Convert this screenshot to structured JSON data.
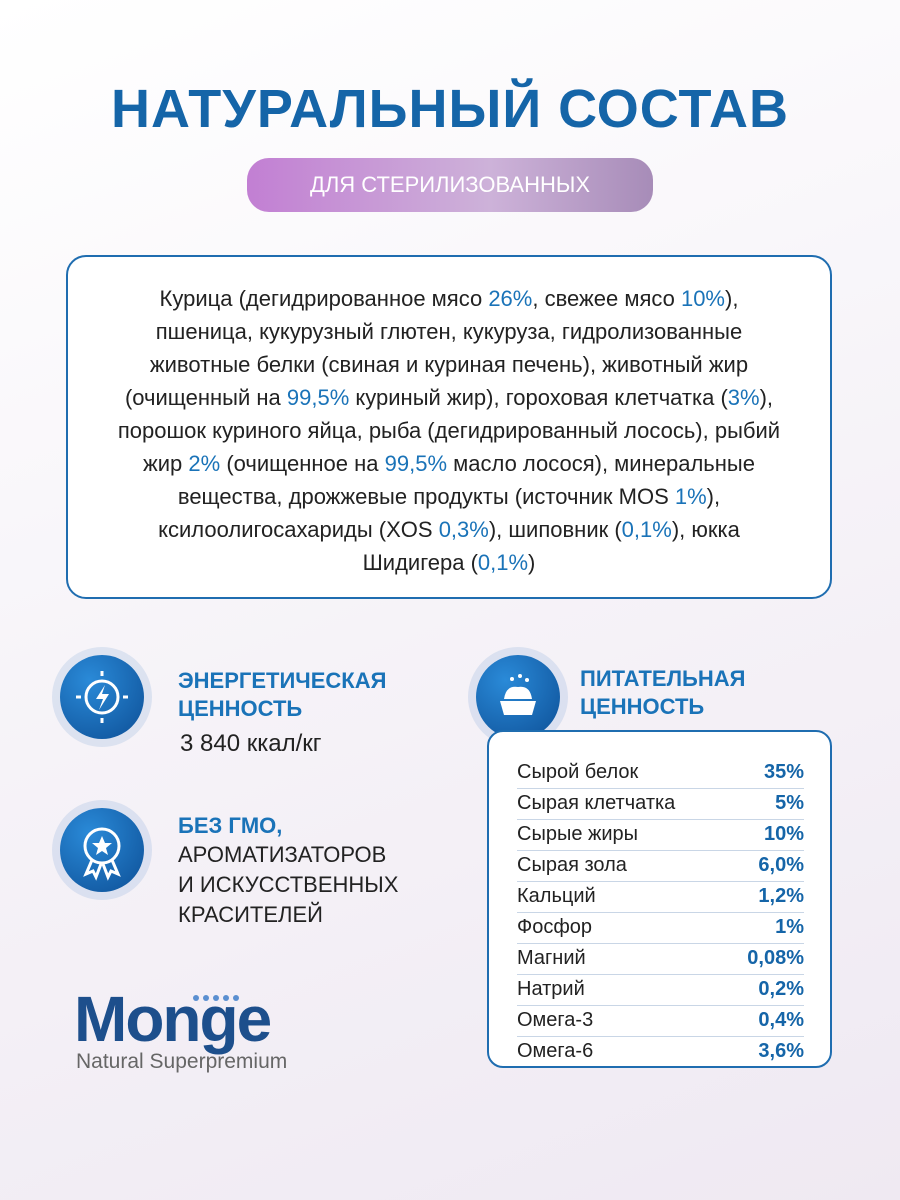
{
  "header": {
    "title": "НАТУРАЛЬНЫЙ СОСТАВ",
    "badge": "ДЛЯ СТЕРИЛИЗОВАННЫХ"
  },
  "composition": [
    {
      "text": "Курица (дегидрированное мясо ",
      "accent": false
    },
    {
      "text": "26%",
      "accent": true
    },
    {
      "text": ", свежее мясо ",
      "accent": false
    },
    {
      "text": "10%",
      "accent": true
    },
    {
      "text": "), пшеница, кукурузный глютен, кукуруза, гидролизованные животные белки (свиная и куриная печень), животный жир (очищенный на ",
      "accent": false
    },
    {
      "text": "99,5%",
      "accent": true
    },
    {
      "text": " куриный жир), гороховая клетчатка (",
      "accent": false
    },
    {
      "text": "3%",
      "accent": true
    },
    {
      "text": "), порошок куриного яйца, рыба (дегидрированный лосось), рыбий жир ",
      "accent": false
    },
    {
      "text": "2%",
      "accent": true
    },
    {
      "text": " (очищенное на ",
      "accent": false
    },
    {
      "text": "99,5%",
      "accent": true
    },
    {
      "text": " масло лосося), минеральные вещества, дрожжевые продукты (источник MOS ",
      "accent": false
    },
    {
      "text": "1%",
      "accent": true
    },
    {
      "text": "), ксилоолигосахариды (XOS ",
      "accent": false
    },
    {
      "text": "0,3%",
      "accent": true
    },
    {
      "text": "), шиповник (",
      "accent": false
    },
    {
      "text": "0,1%",
      "accent": true
    },
    {
      "text": "), юкка Шидигера (",
      "accent": false
    },
    {
      "text": "0,1%",
      "accent": true
    },
    {
      "text": ")",
      "accent": false
    }
  ],
  "energy": {
    "title": [
      "ЭНЕРГЕТИЧЕСКАЯ",
      "ЦЕННОСТЬ"
    ],
    "value": "3 840 ккал/кг"
  },
  "gmo": {
    "title": "БЕЗ ГМО,",
    "lines": [
      "АРОМАТИЗАТОРОВ",
      "И ИСКУССТВЕННЫХ",
      "КРАСИТЕЛЕЙ"
    ]
  },
  "nutrition": {
    "title": [
      "ПИТАТЕЛЬНАЯ",
      "ЦЕННОСТЬ"
    ],
    "rows": [
      [
        "Сырой белок",
        "35%"
      ],
      [
        "Сырая клетчатка",
        "5%"
      ],
      [
        "Сырые жиры",
        "10%"
      ],
      [
        "Сырая зола",
        "6,0%"
      ],
      [
        "Кальций",
        "1,2%"
      ],
      [
        "Фосфор",
        "1%"
      ],
      [
        "Магний",
        "0,08%"
      ],
      [
        "Натрий",
        "0,2%"
      ],
      [
        "Омега-3",
        "0,4%"
      ],
      [
        "Омега-6",
        "3,6%"
      ]
    ]
  },
  "logo": {
    "name": "Monge",
    "tagline": "Natural Superpremium"
  }
}
